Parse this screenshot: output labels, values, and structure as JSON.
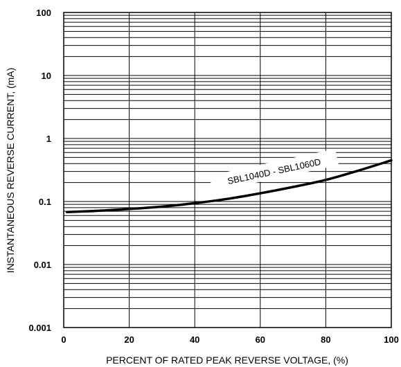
{
  "chart_data": {
    "type": "line",
    "xlabel": "PERCENT OF RATED PEAK REVERSE VOLTAGE, (%)",
    "ylabel": "INSTANTANEOUS  REVERSE CURRENT, (mA)",
    "x_ticks": [
      "0",
      "20",
      "40",
      "60",
      "80",
      "100"
    ],
    "y_ticks": [
      "0.001",
      "0.01",
      "0.1",
      "1",
      "10",
      "100"
    ],
    "xlim": [
      0,
      100
    ],
    "ylim": [
      0.001,
      100
    ],
    "y_scale": "log",
    "grid": true,
    "series": [
      {
        "name": "SBL1040D - SBL1060D",
        "x": [
          1,
          10,
          20,
          30,
          40,
          50,
          60,
          70,
          80,
          90,
          100
        ],
        "y": [
          0.068,
          0.071,
          0.076,
          0.083,
          0.094,
          0.11,
          0.135,
          0.17,
          0.22,
          0.31,
          0.45
        ]
      }
    ]
  }
}
